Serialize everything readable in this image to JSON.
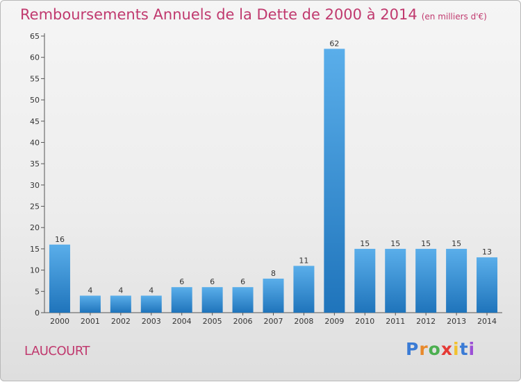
{
  "title": "Remboursements Annuels de la Dette de 2000 à 2014",
  "subtitle": "(en milliers d'€)",
  "commune": "LAUCOURT",
  "logo": {
    "letters": [
      "P",
      "r",
      "o",
      "x",
      "i",
      "t",
      "i"
    ],
    "colors": [
      "#3a7bd5",
      "#e8892b",
      "#4caf50",
      "#e53935",
      "#f2c12e",
      "#3a7bd5",
      "#9c4fd6"
    ]
  },
  "colors": {
    "bar_top": "#5aaeea",
    "bar_bottom": "#1f74bb",
    "title": "#c0396e"
  },
  "chart_data": {
    "type": "bar",
    "categories": [
      "2000",
      "2001",
      "2002",
      "2003",
      "2004",
      "2005",
      "2006",
      "2007",
      "2008",
      "2009",
      "2010",
      "2011",
      "2012",
      "2013",
      "2014"
    ],
    "values": [
      16,
      4,
      4,
      4,
      6,
      6,
      6,
      8,
      11,
      62,
      15,
      15,
      15,
      15,
      13
    ],
    "ylim": [
      0,
      65
    ],
    "yticks": [
      0,
      5,
      10,
      15,
      20,
      25,
      30,
      35,
      40,
      45,
      50,
      55,
      60,
      65
    ],
    "grid": false,
    "xlabel": "",
    "ylabel": ""
  }
}
